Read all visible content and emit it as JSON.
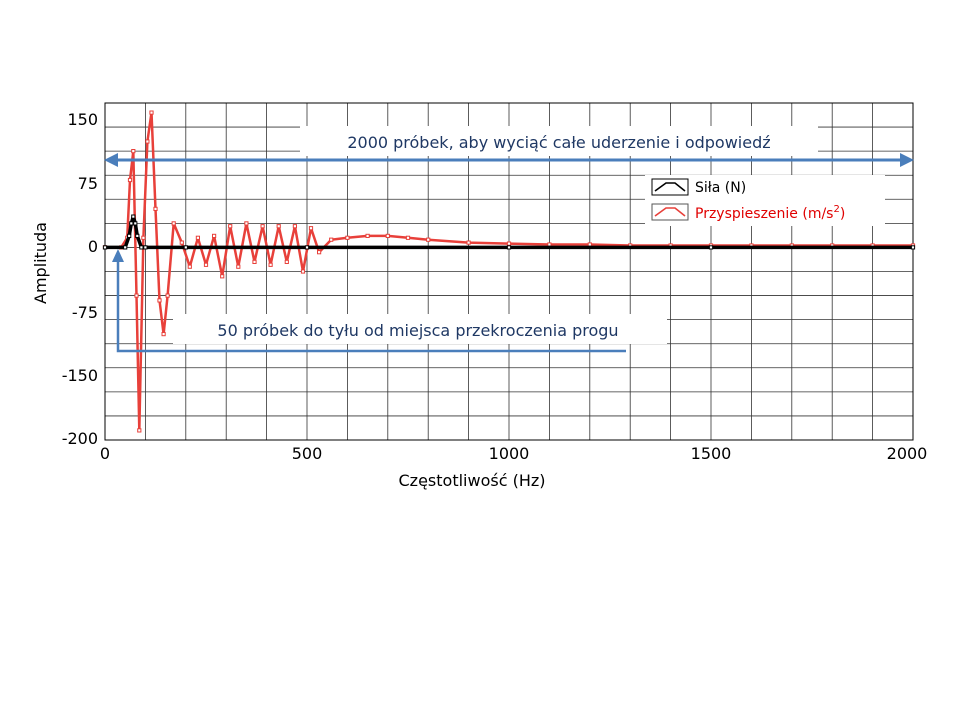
{
  "chart_data": {
    "type": "line",
    "xlabel": "Częstotliwość (Hz)",
    "ylabel": "Amplituda",
    "xlim": [
      0,
      2000
    ],
    "ylim": [
      -200,
      150
    ],
    "x_ticks": [
      "0",
      "500",
      "1000",
      "1500",
      "2000"
    ],
    "y_ticks": [
      "150",
      "75",
      "0",
      "-75",
      "-150",
      "-200"
    ],
    "grid": true,
    "legend_position": "top-right",
    "series": [
      {
        "name": "Siła (N)",
        "color": "#000000",
        "x": [
          0,
          50,
          60,
          65,
          70,
          75,
          80,
          90,
          100,
          200,
          500,
          1000,
          1500,
          2000
        ],
        "y": [
          0,
          0,
          12,
          25,
          32,
          25,
          12,
          0,
          0,
          0,
          0,
          0,
          0,
          0
        ]
      },
      {
        "name": "Przyspieszenie (m/s²)",
        "name_main": "Przyspieszenie (m/s",
        "name_sup": "2",
        "name_tail": ")",
        "color": "#e8403a",
        "x": [
          0,
          40,
          55,
          62,
          70,
          78,
          85,
          95,
          105,
          115,
          125,
          135,
          145,
          155,
          170,
          190,
          210,
          230,
          250,
          270,
          290,
          310,
          330,
          350,
          370,
          390,
          410,
          430,
          450,
          470,
          490,
          510,
          530,
          560,
          600,
          650,
          700,
          750,
          800,
          900,
          1000,
          1100,
          1200,
          1300,
          1400,
          1500,
          1600,
          1700,
          1800,
          1900,
          2000
        ],
        "y": [
          0,
          0,
          10,
          70,
          100,
          -50,
          -190,
          10,
          110,
          140,
          40,
          -55,
          -90,
          -50,
          25,
          5,
          -20,
          10,
          -18,
          12,
          -30,
          22,
          -20,
          25,
          -15,
          22,
          -18,
          22,
          -15,
          22,
          -25,
          20,
          -5,
          8,
          10,
          12,
          12,
          10,
          8,
          5,
          4,
          3,
          3,
          2,
          2,
          2,
          2,
          2,
          2,
          2,
          2
        ]
      }
    ]
  },
  "annotations": {
    "top": "2000 próbek, aby wyciąć całe uderzenie i odpowiedź",
    "bottom": "50 próbek do tyłu od miejsca przekroczenia progu"
  }
}
